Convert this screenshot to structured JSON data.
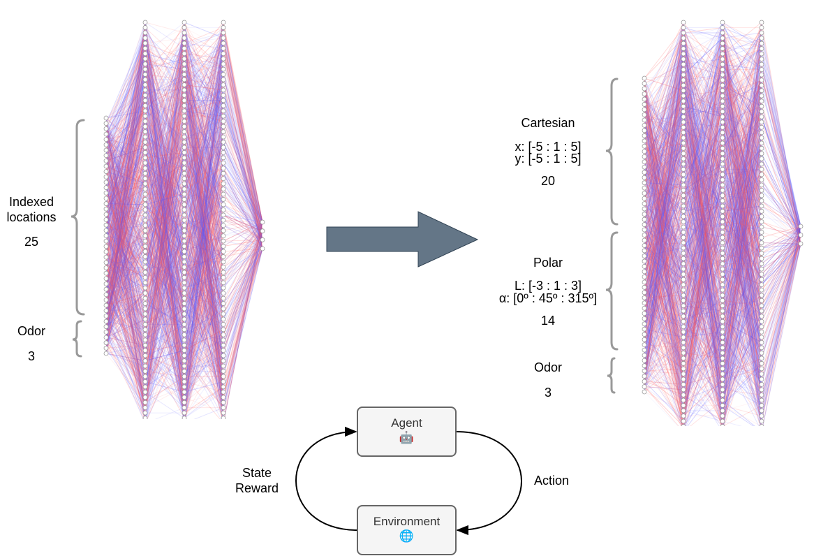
{
  "left_network": {
    "groups": [
      {
        "title": "Indexed\nlocations",
        "count": "25"
      },
      {
        "title": "Odor",
        "count": "3"
      }
    ]
  },
  "right_network": {
    "groups": [
      {
        "title": "Cartesian",
        "ranges": [
          "x: [-5 : 1 : 5]",
          "y: [-5 : 1 : 5]"
        ],
        "count": "20"
      },
      {
        "title": "Polar",
        "ranges": [
          "L: [-3 : 1 : 3]",
          "α: [0º : 45º : 315º]"
        ],
        "count": "14"
      },
      {
        "title": "Odor",
        "count": "3"
      }
    ]
  },
  "rl_loop": {
    "agent": {
      "label": "Agent",
      "icon": "🤖"
    },
    "environment": {
      "label": "Environment",
      "icon": "🌐"
    },
    "left_edge": [
      "State",
      "Reward"
    ],
    "right_edge": "Action"
  },
  "colors": {
    "edge_blue": "#5a5aff",
    "edge_red": "#ff5a5a",
    "arrow_fill": "#647687",
    "brace": "#999999"
  }
}
